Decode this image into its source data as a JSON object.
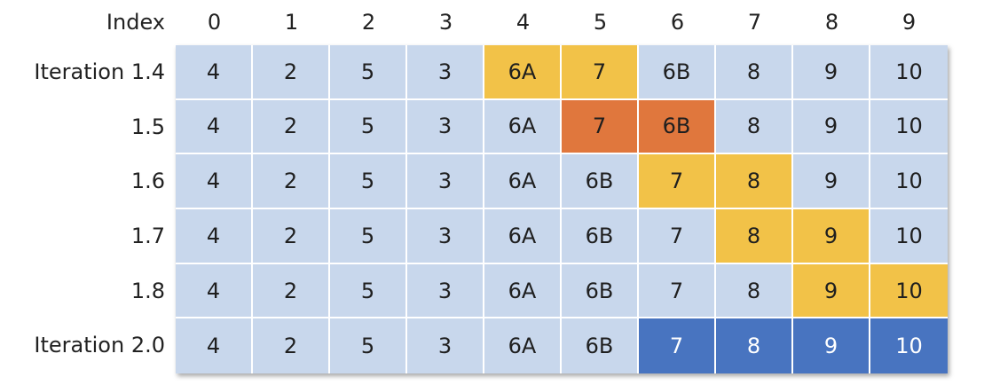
{
  "colors": {
    "default": "#c8d7ec",
    "yellow": "#f2c248",
    "orange": "#e0773d",
    "blue": "#4874c0",
    "text_dark": "#1f1f1f",
    "text_light": "#ffffff"
  },
  "header": {
    "label": "Index",
    "indices": [
      "0",
      "1",
      "2",
      "3",
      "4",
      "5",
      "6",
      "7",
      "8",
      "9"
    ]
  },
  "rows": [
    {
      "label": "Iteration 1.4",
      "cells": [
        "4",
        "2",
        "5",
        "3",
        "6A",
        "7",
        "6B",
        "8",
        "9",
        "10"
      ],
      "highlight": [
        "default",
        "default",
        "default",
        "default",
        "yellow",
        "yellow",
        "default",
        "default",
        "default",
        "default"
      ]
    },
    {
      "label": "1.5",
      "cells": [
        "4",
        "2",
        "5",
        "3",
        "6A",
        "7",
        "6B",
        "8",
        "9",
        "10"
      ],
      "highlight": [
        "default",
        "default",
        "default",
        "default",
        "default",
        "orange",
        "orange",
        "default",
        "default",
        "default"
      ]
    },
    {
      "label": "1.6",
      "cells": [
        "4",
        "2",
        "5",
        "3",
        "6A",
        "6B",
        "7",
        "8",
        "9",
        "10"
      ],
      "highlight": [
        "default",
        "default",
        "default",
        "default",
        "default",
        "default",
        "yellow",
        "yellow",
        "default",
        "default"
      ]
    },
    {
      "label": "1.7",
      "cells": [
        "4",
        "2",
        "5",
        "3",
        "6A",
        "6B",
        "7",
        "8",
        "9",
        "10"
      ],
      "highlight": [
        "default",
        "default",
        "default",
        "default",
        "default",
        "default",
        "default",
        "yellow",
        "yellow",
        "default"
      ]
    },
    {
      "label": "1.8",
      "cells": [
        "4",
        "2",
        "5",
        "3",
        "6A",
        "6B",
        "7",
        "8",
        "9",
        "10"
      ],
      "highlight": [
        "default",
        "default",
        "default",
        "default",
        "default",
        "default",
        "default",
        "default",
        "yellow",
        "yellow"
      ]
    },
    {
      "label": "Iteration 2.0",
      "cells": [
        "4",
        "2",
        "5",
        "3",
        "6A",
        "6B",
        "7",
        "8",
        "9",
        "10"
      ],
      "highlight": [
        "default",
        "default",
        "default",
        "default",
        "default",
        "default",
        "blue",
        "blue",
        "blue",
        "blue"
      ]
    }
  ]
}
